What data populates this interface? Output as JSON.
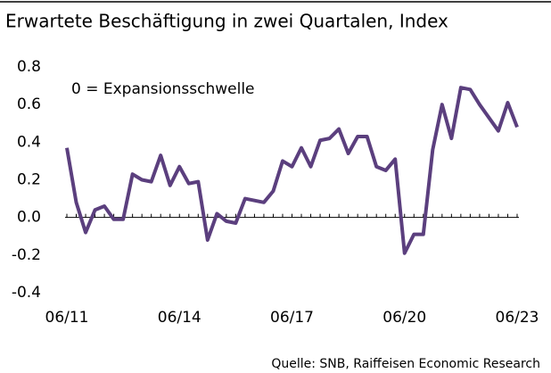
{
  "chart_data": {
    "type": "line",
    "title": "Erwartete Beschäftigung in zwei Quartalen, Index",
    "annotation": "0 = Expansionsschwelle",
    "source": "Quelle: SNB, Raiffeisen Economic Research",
    "categories": [
      "06/11",
      null,
      null,
      null,
      null,
      null,
      null,
      null,
      null,
      null,
      null,
      null,
      "06/14",
      null,
      null,
      null,
      null,
      null,
      null,
      null,
      null,
      null,
      null,
      null,
      "06/17",
      null,
      null,
      null,
      null,
      null,
      null,
      null,
      null,
      null,
      null,
      null,
      "06/20",
      null,
      null,
      null,
      null,
      null,
      null,
      null,
      null,
      null,
      null,
      null,
      "06/23"
    ],
    "values": [
      0.37,
      0.08,
      -0.08,
      0.04,
      0.06,
      -0.01,
      -0.01,
      0.23,
      0.2,
      0.19,
      0.33,
      0.17,
      0.27,
      0.18,
      0.19,
      -0.12,
      0.02,
      -0.02,
      -0.03,
      0.1,
      0.09,
      0.08,
      0.14,
      0.3,
      0.27,
      0.37,
      0.27,
      0.41,
      0.42,
      0.47,
      0.34,
      0.43,
      0.43,
      0.27,
      0.25,
      0.31,
      -0.19,
      -0.09,
      -0.09,
      0.36,
      0.6,
      0.42,
      0.69,
      0.68,
      0.6,
      0.53,
      0.46,
      0.61,
      0.48
    ],
    "color": "#5b3f7e",
    "ylim": [
      -0.4,
      0.8
    ],
    "yticks": [
      -0.4,
      -0.2,
      {
        "value": 0,
        "label": "0.0"
      },
      0.2,
      0.4,
      0.6,
      0.8
    ]
  }
}
